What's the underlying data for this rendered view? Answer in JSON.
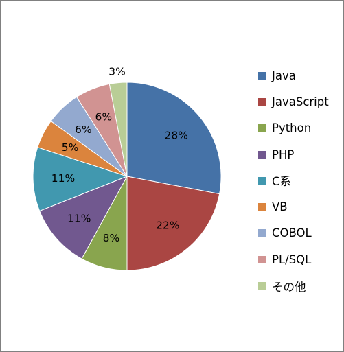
{
  "chart_data": {
    "type": "pie",
    "title": "",
    "start_angle_deg": 90,
    "direction": "clockwise",
    "legend_position": "right",
    "slices": [
      {
        "name": "Java",
        "value": 28,
        "label": "28%",
        "color": "#4572A7"
      },
      {
        "name": "JavaScript",
        "value": 22,
        "label": "22%",
        "color": "#AA4643"
      },
      {
        "name": "Python",
        "value": 8,
        "label": "8%",
        "color": "#89A54E"
      },
      {
        "name": "PHP",
        "value": 11,
        "label": "11%",
        "color": "#71588F"
      },
      {
        "name": "C系",
        "value": 11,
        "label": "11%",
        "color": "#4198AF"
      },
      {
        "name": "VB",
        "value": 5,
        "label": "5%",
        "color": "#DB843D"
      },
      {
        "name": "COBOL",
        "value": 6,
        "label": "6%",
        "color": "#93A9CF"
      },
      {
        "name": "PL/SQL",
        "value": 6,
        "label": "6%",
        "color": "#D19392"
      },
      {
        "name": "その他",
        "value": 3,
        "label": "3%",
        "color": "#B9CD96"
      }
    ]
  }
}
